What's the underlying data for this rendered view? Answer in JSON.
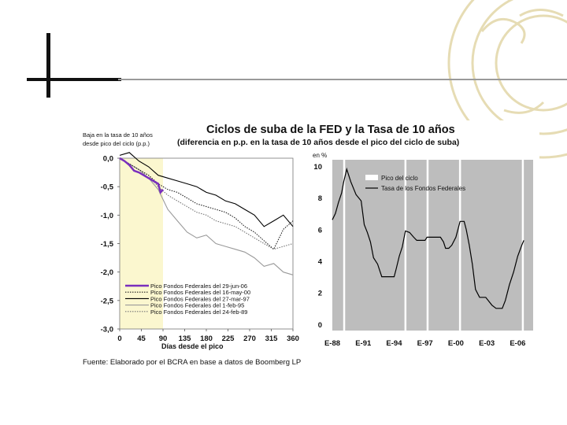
{
  "slide": {
    "deco": "sun-watermark"
  },
  "chart_data": [
    {
      "type": "line",
      "title": "Ciclos de suba de la FED y la Tasa de 10 años",
      "subtitle": "(diferencia en p.p. en la tasa de 10 años desde el pico del ciclo de suba)",
      "ylabel_lines": [
        "Baja en la tasa de 10 años",
        "desde pico del ciclo (p.p.)"
      ],
      "xlabel": "Días desde el pico",
      "xlim": [
        0,
        360
      ],
      "ylim": [
        -3.0,
        0.0
      ],
      "xticks": [
        0,
        45,
        90,
        135,
        180,
        225,
        270,
        315,
        360
      ],
      "xtick_labels": [
        "0",
        "45",
        "90",
        "135",
        "180",
        "225",
        "270",
        "315",
        "360"
      ],
      "yticks": [
        0.0,
        -0.5,
        -1.0,
        -1.5,
        -2.0,
        -2.5,
        -3.0
      ],
      "ytick_labels": [
        "0,0",
        "-0,5",
        "-1,0",
        "-1,5",
        "-2,0",
        "-2,5",
        "-3,0"
      ],
      "highlight_band": [
        0,
        90
      ],
      "legend_position": "bottom-right",
      "series": [
        {
          "name": "Pico Fondos Federales del 29-jun-06",
          "color": "#7a2fbd",
          "style": "thick",
          "x": [
            0,
            10,
            20,
            30,
            40,
            50,
            60,
            70,
            80,
            85,
            90
          ],
          "values": [
            0.0,
            -0.05,
            -0.12,
            -0.22,
            -0.25,
            -0.3,
            -0.35,
            -0.4,
            -0.45,
            -0.6,
            -0.55
          ]
        },
        {
          "name": "Pico Fondos Federales del 16-may-00",
          "color": "#222222",
          "style": "dotted",
          "x": [
            0,
            20,
            40,
            60,
            80,
            100,
            120,
            140,
            160,
            180,
            200,
            220,
            240,
            260,
            280,
            300,
            320,
            340,
            360
          ],
          "values": [
            0.0,
            -0.1,
            -0.2,
            -0.3,
            -0.45,
            -0.55,
            -0.6,
            -0.7,
            -0.8,
            -0.85,
            -0.9,
            -0.95,
            -1.05,
            -1.2,
            -1.3,
            -1.45,
            -1.6,
            -1.25,
            -1.1
          ]
        },
        {
          "name": "Pico Fondos Federales del 27-mar-97",
          "color": "#000000",
          "style": "solid",
          "x": [
            0,
            20,
            40,
            60,
            80,
            100,
            120,
            140,
            160,
            180,
            200,
            220,
            240,
            260,
            280,
            300,
            320,
            340,
            360
          ],
          "values": [
            0.05,
            0.1,
            -0.05,
            -0.15,
            -0.3,
            -0.35,
            -0.4,
            -0.45,
            -0.5,
            -0.6,
            -0.65,
            -0.75,
            -0.8,
            -0.9,
            -1.0,
            -1.2,
            -1.1,
            -1.0,
            -1.2
          ]
        },
        {
          "name": "Pico Fondos Federales del 1-feb-95",
          "color": "#9a9a9a",
          "style": "solid",
          "x": [
            0,
            20,
            40,
            60,
            80,
            100,
            120,
            140,
            160,
            180,
            200,
            220,
            240,
            260,
            280,
            300,
            320,
            340,
            360
          ],
          "values": [
            0.0,
            -0.1,
            -0.2,
            -0.35,
            -0.55,
            -0.9,
            -1.1,
            -1.3,
            -1.4,
            -1.35,
            -1.5,
            -1.55,
            -1.6,
            -1.65,
            -1.75,
            -1.9,
            -1.85,
            -2.0,
            -2.05
          ]
        },
        {
          "name": "Pico Fondos Federales del 24-feb-89",
          "color": "#777777",
          "style": "dotted",
          "x": [
            0,
            20,
            40,
            60,
            80,
            100,
            120,
            140,
            160,
            180,
            200,
            220,
            240,
            260,
            280,
            300,
            320,
            340,
            360
          ],
          "values": [
            0.0,
            -0.1,
            -0.2,
            -0.3,
            -0.5,
            -0.65,
            -0.75,
            -0.85,
            -0.95,
            -1.0,
            -1.1,
            -1.15,
            -1.2,
            -1.3,
            -1.4,
            -1.5,
            -1.6,
            -1.55,
            -1.5
          ]
        }
      ]
    },
    {
      "type": "line",
      "ylabel": "en %",
      "ylim": [
        0,
        10
      ],
      "yticks": [
        0,
        2,
        4,
        6,
        8,
        10
      ],
      "ytick_labels": [
        "0",
        "2",
        "4",
        "6",
        "8",
        "10"
      ],
      "xlim": [
        1988,
        2007.5
      ],
      "xticks": [
        1988,
        1991,
        1994,
        1997,
        2000,
        2003,
        2006
      ],
      "xtick_labels": [
        "E-88",
        "E-91",
        "E-94",
        "E-97",
        "E-00",
        "E-03",
        "E-06"
      ],
      "legend_position": "top-right",
      "legend": [
        "Pico del ciclo",
        "Tasa de los Fondos Federales"
      ],
      "cycle_peaks": [
        1989.15,
        1995.1,
        1997.25,
        2000.4,
        2006.5
      ],
      "series": [
        {
          "name": "Tasa de los Fondos Federales",
          "color": "#000000",
          "x": [
            1988.0,
            1988.3,
            1988.6,
            1988.9,
            1989.1,
            1989.4,
            1989.8,
            1990.3,
            1990.8,
            1991.1,
            1991.4,
            1991.7,
            1992.0,
            1992.4,
            1992.8,
            1993.2,
            1993.6,
            1994.0,
            1994.2,
            1994.5,
            1994.8,
            1995.1,
            1995.5,
            1995.9,
            1996.2,
            1996.6,
            1997.0,
            1997.2,
            1997.6,
            1998.0,
            1998.5,
            1998.8,
            1999.0,
            1999.3,
            1999.6,
            2000.0,
            2000.4,
            2000.8,
            2001.0,
            2001.3,
            2001.6,
            2001.9,
            2002.3,
            2002.9,
            2003.5,
            2003.9,
            2004.5,
            2004.8,
            2005.2,
            2005.6,
            2006.0,
            2006.4,
            2006.6
          ],
          "values": [
            6.6,
            7.0,
            7.7,
            8.3,
            9.0,
            9.8,
            9.0,
            8.2,
            7.8,
            6.3,
            5.8,
            5.2,
            4.2,
            3.8,
            3.0,
            3.0,
            3.0,
            3.0,
            3.5,
            4.3,
            4.9,
            5.9,
            5.8,
            5.5,
            5.3,
            5.3,
            5.3,
            5.5,
            5.5,
            5.5,
            5.5,
            5.2,
            4.8,
            4.8,
            5.0,
            5.5,
            6.5,
            6.5,
            6.0,
            5.0,
            3.8,
            2.2,
            1.7,
            1.7,
            1.2,
            1.0,
            1.0,
            1.5,
            2.5,
            3.3,
            4.3,
            5.0,
            5.3
          ]
        }
      ]
    }
  ],
  "source": "Fuente: Elaborado por el BCRA en base a datos de Boomberg LP"
}
